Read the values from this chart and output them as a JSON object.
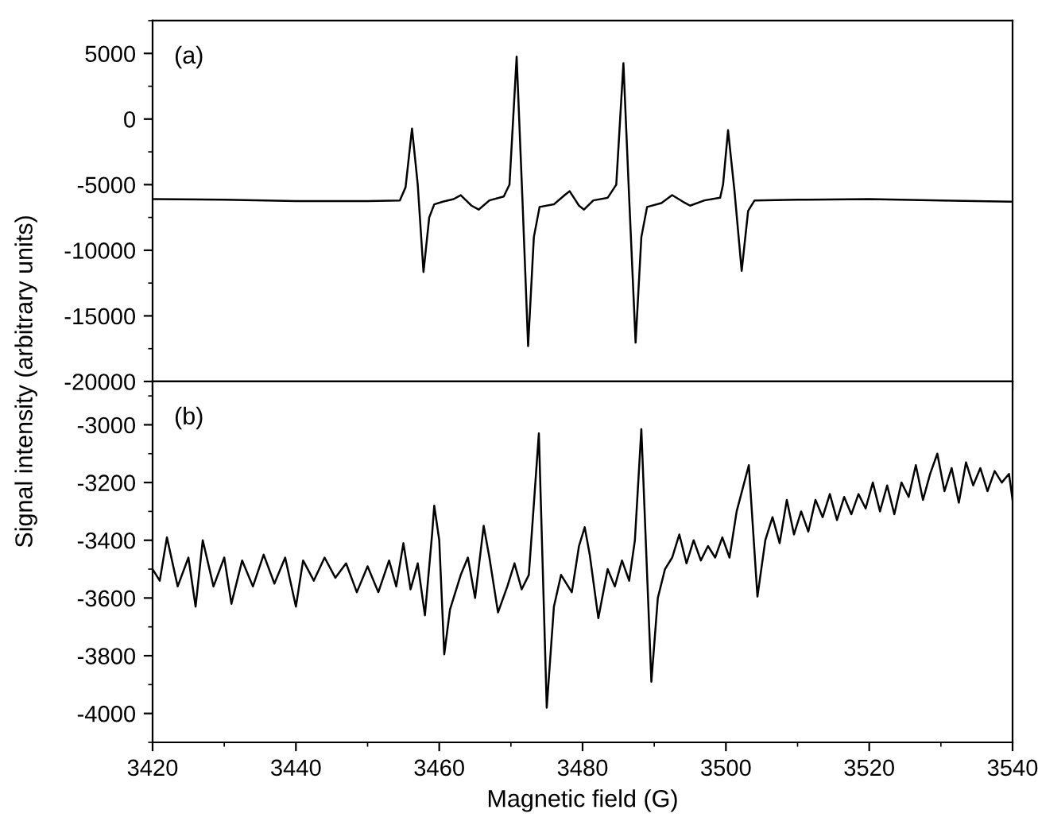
{
  "chart_data": [
    {
      "type": "line",
      "ylabel": "Signal intensity (arbitrary units)",
      "annotations": [
        "(a)"
      ],
      "xlim": [
        3420,
        3540
      ],
      "xticks": [
        3420,
        3440,
        3460,
        3480,
        3500,
        3520,
        3540
      ],
      "ylim": [
        -20000,
        7500
      ],
      "yticks": [
        -20000,
        -15000,
        -10000,
        -5000,
        0,
        5000
      ],
      "tick_labels": "y",
      "grid": false,
      "legend": false,
      "series": [
        {
          "color": "#000000",
          "x": [
            3420,
            3430,
            3440,
            3450,
            3454.5,
            3455.3,
            3456.2,
            3457.0,
            3457.8,
            3458.6,
            3459.3,
            3460.5,
            3462,
            3463,
            3464.5,
            3465.5,
            3467,
            3469,
            3469.8,
            3470.8,
            3471.6,
            3472.4,
            3473.2,
            3474,
            3476,
            3477.5,
            3478.2,
            3479.5,
            3480.2,
            3481.5,
            3483.5,
            3484.7,
            3485.7,
            3486.5,
            3487.4,
            3488.2,
            3489,
            3491,
            3492.5,
            3494,
            3495,
            3497,
            3499.2,
            3499.6,
            3500.3,
            3501.2,
            3502.2,
            3503.1,
            3504,
            3510,
            3520,
            3530,
            3540
          ],
          "values": [
            -6100,
            -6150,
            -6250,
            -6250,
            -6200,
            -5200,
            -720,
            -5000,
            -11660,
            -7500,
            -6500,
            -6300,
            -6100,
            -5800,
            -6600,
            -6900,
            -6200,
            -5900,
            -5000,
            4750,
            -6000,
            -17300,
            -9000,
            -6700,
            -6500,
            -5800,
            -5500,
            -6600,
            -6900,
            -6200,
            -6000,
            -5000,
            4250,
            -6000,
            -17040,
            -9000,
            -6700,
            -6400,
            -5800,
            -6300,
            -6600,
            -6200,
            -6000,
            -5000,
            -850,
            -5500,
            -11570,
            -7000,
            -6200,
            -6150,
            -6100,
            -6200,
            -6300
          ]
        }
      ]
    },
    {
      "type": "line",
      "xlabel": "Magnetic field (G)",
      "annotations": [
        "(b)"
      ],
      "xlim": [
        3420,
        3540
      ],
      "xticks": [
        3420,
        3440,
        3460,
        3480,
        3500,
        3520,
        3540
      ],
      "ylim": [
        -4100,
        -2850
      ],
      "yticks": [
        -4000,
        -3800,
        -3600,
        -3400,
        -3200,
        -3000
      ],
      "grid": false,
      "legend": false,
      "series": [
        {
          "color": "#000000",
          "x": [
            3420,
            3421,
            3422,
            3423.5,
            3425,
            3426,
            3427,
            3428.5,
            3430,
            3431,
            3432.5,
            3434,
            3435.5,
            3437,
            3438.5,
            3440,
            3441,
            3442.5,
            3444,
            3445.5,
            3447,
            3448.5,
            3450,
            3451.5,
            3453,
            3454,
            3455,
            3456,
            3457,
            3458,
            3459,
            3459.3,
            3460,
            3460.7,
            3461.5,
            3463,
            3464,
            3465,
            3466.2,
            3467,
            3468.2,
            3469.5,
            3470.5,
            3471.5,
            3472.5,
            3473.9,
            3475.0,
            3476,
            3477,
            3478.5,
            3479.5,
            3480.3,
            3481,
            3482.2,
            3483.5,
            3484.5,
            3485.5,
            3486.5,
            3487.3,
            3488.2,
            3489.6,
            3490.5,
            3491.5,
            3492.5,
            3493.5,
            3494.5,
            3495.5,
            3496.5,
            3497.5,
            3498.5,
            3499.5,
            3500.5,
            3501.5,
            3503.2,
            3504.4,
            3505.5,
            3506.5,
            3507.5,
            3508.5,
            3509.5,
            3510.5,
            3511.5,
            3512.5,
            3513.5,
            3514.5,
            3515.5,
            3516.5,
            3517.5,
            3518.5,
            3519.5,
            3520.5,
            3521.5,
            3522.5,
            3523.5,
            3524.5,
            3525.5,
            3526.5,
            3527.5,
            3528.5,
            3529.5,
            3530.5,
            3531.5,
            3532.5,
            3533.5,
            3534.5,
            3535.5,
            3536.5,
            3537.5,
            3538.5,
            3539.5,
            3540
          ],
          "values": [
            -3500,
            -3540,
            -3390,
            -3560,
            -3460,
            -3630,
            -3400,
            -3560,
            -3460,
            -3620,
            -3470,
            -3560,
            -3450,
            -3550,
            -3460,
            -3630,
            -3470,
            -3540,
            -3460,
            -3530,
            -3480,
            -3580,
            -3490,
            -3580,
            -3470,
            -3560,
            -3410,
            -3570,
            -3480,
            -3660,
            -3380,
            -3280,
            -3400,
            -3795,
            -3640,
            -3520,
            -3460,
            -3600,
            -3350,
            -3460,
            -3650,
            -3560,
            -3480,
            -3570,
            -3520,
            -3030,
            -3980,
            -3630,
            -3520,
            -3580,
            -3420,
            -3355,
            -3450,
            -3670,
            -3500,
            -3560,
            -3470,
            -3540,
            -3400,
            -3015,
            -3890,
            -3600,
            -3500,
            -3460,
            -3380,
            -3480,
            -3400,
            -3470,
            -3420,
            -3460,
            -3390,
            -3460,
            -3300,
            -3140,
            -3595,
            -3400,
            -3320,
            -3410,
            -3260,
            -3380,
            -3300,
            -3370,
            -3260,
            -3320,
            -3240,
            -3330,
            -3250,
            -3310,
            -3240,
            -3290,
            -3200,
            -3300,
            -3210,
            -3310,
            -3200,
            -3250,
            -3140,
            -3260,
            -3170,
            -3100,
            -3230,
            -3150,
            -3270,
            -3130,
            -3210,
            -3150,
            -3230,
            -3160,
            -3200,
            -3170,
            -3260
          ]
        }
      ]
    }
  ]
}
